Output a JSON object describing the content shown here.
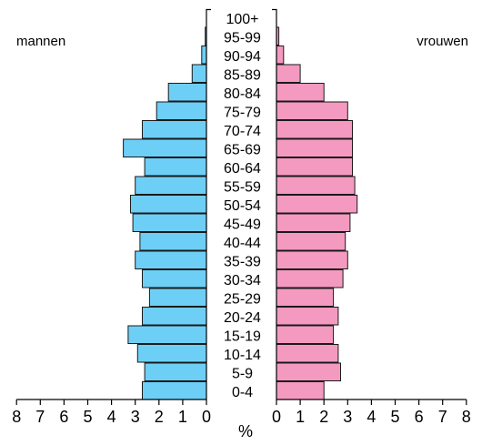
{
  "chart_data": {
    "type": "bar",
    "orientation": "horizontal-pyramid",
    "categories": [
      "0-4",
      "5-9",
      "10-14",
      "15-19",
      "20-24",
      "25-29",
      "30-34",
      "35-39",
      "40-44",
      "45-49",
      "50-54",
      "55-59",
      "60-64",
      "65-69",
      "70-74",
      "75-79",
      "80-84",
      "85-89",
      "90-94",
      "95-99",
      "100+"
    ],
    "series": [
      {
        "name": "mannen",
        "color": "#6dcff6",
        "values": [
          2.7,
          2.6,
          2.9,
          3.3,
          2.7,
          2.4,
          2.7,
          3.0,
          2.8,
          3.1,
          3.2,
          3.0,
          2.6,
          3.5,
          2.7,
          2.1,
          1.6,
          0.6,
          0.2,
          0.05,
          0.0
        ]
      },
      {
        "name": "vrouwen",
        "color": "#f49ac1",
        "values": [
          2.0,
          2.7,
          2.6,
          2.4,
          2.6,
          2.4,
          2.8,
          3.0,
          2.9,
          3.1,
          3.4,
          3.3,
          3.2,
          3.2,
          3.2,
          3.0,
          2.0,
          1.0,
          0.3,
          0.1,
          0.0
        ]
      }
    ],
    "title": "",
    "xlabel": "%",
    "ylabel": "",
    "xlim": [
      0,
      8
    ],
    "xticks": [
      "8",
      "7",
      "6",
      "5",
      "4",
      "3",
      "2",
      "1",
      "0",
      "0",
      "1",
      "2",
      "3",
      "4",
      "5",
      "6",
      "7",
      "8"
    ],
    "grid": false,
    "legend": "side labels at top (left: mannen, right: vrouwen)"
  },
  "labels": {
    "left": "mannen",
    "right": "vrouwen",
    "unit": "%"
  }
}
